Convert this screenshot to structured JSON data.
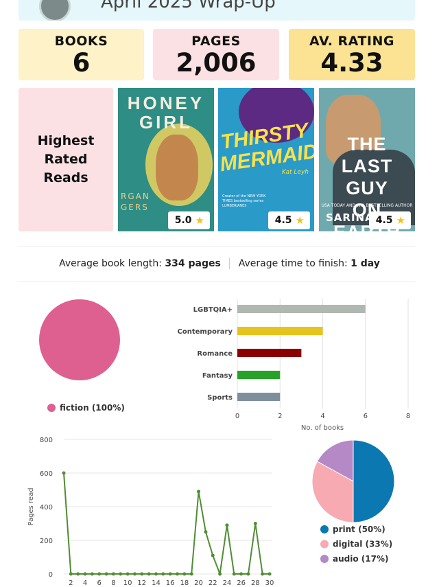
{
  "header": {
    "title": "April 2025 Wrap-Up"
  },
  "stats": [
    {
      "label": "BOOKS",
      "value": "6"
    },
    {
      "label": "PAGES",
      "value": "2,006"
    },
    {
      "label": "AV. RATING",
      "value": "4.33"
    }
  ],
  "highest_rated": {
    "title_lines": [
      "Highest",
      "Rated",
      "Reads"
    ],
    "books": [
      {
        "cover_title_lines": [
          "HONEY",
          "GIRL"
        ],
        "author_partial": [
          "RGAN",
          "GERS"
        ],
        "rating": "5.0"
      },
      {
        "cover_title_lines": [
          "THIRSTY",
          "MERMAIDS"
        ],
        "author_partial": "Kat Leyh",
        "blurb": "Creator of the NEW YORK TIMES bestselling series LUMBERJANES",
        "rating": "4.5"
      },
      {
        "cover_title_lines": [
          "THE",
          "LAST GUY",
          "ON EARTH"
        ],
        "tagline": "USA TODAY AND WSJ BESTSELLING AUTHOR",
        "author_partial": "SARINA",
        "rating": "4.5"
      }
    ]
  },
  "summary": {
    "avg_length_label": "Average book length:",
    "avg_length_value": "334 pages",
    "avg_time_label": "Average time to finish:",
    "avg_time_value": "1 day"
  },
  "colors": {
    "fiction": "#dd6090",
    "genre_bars": [
      "#b0b8b1",
      "#e7c41c",
      "#8b0000",
      "#27a227",
      "#7e8f9c"
    ],
    "line": "#4f8d32",
    "format": [
      "#0b78b2",
      "#f7aab1",
      "#b589c6"
    ]
  },
  "chart_data": [
    {
      "type": "pie",
      "labels": [
        "fiction (100%)"
      ],
      "values": [
        100
      ],
      "legend": "bottom"
    },
    {
      "type": "bar",
      "orientation": "horizontal",
      "categories": [
        "LGBTQIA+",
        "Contemporary",
        "Romance",
        "Fantasy",
        "Sports"
      ],
      "values": [
        6,
        4,
        3,
        2,
        2
      ],
      "xlabel": "No. of books",
      "xlim": [
        0,
        8
      ],
      "xticks": [
        "0",
        "2",
        "4",
        "6",
        "8"
      ],
      "grid": true
    },
    {
      "type": "line",
      "x": [
        1,
        2,
        3,
        4,
        5,
        6,
        7,
        8,
        9,
        10,
        11,
        12,
        13,
        14,
        15,
        16,
        17,
        18,
        19,
        20,
        21,
        22,
        23,
        24,
        25,
        26,
        27,
        28,
        29,
        30
      ],
      "values": [
        600,
        0,
        0,
        0,
        0,
        0,
        0,
        0,
        0,
        0,
        0,
        0,
        0,
        0,
        0,
        0,
        0,
        0,
        0,
        490,
        250,
        110,
        0,
        290,
        0,
        0,
        0,
        300,
        0,
        0
      ],
      "ylabel": "Pages read",
      "ylim": [
        0,
        800
      ],
      "yticks": [
        "0",
        "200",
        "400",
        "600",
        "800"
      ],
      "xticks": [
        "2",
        "4",
        "6",
        "8",
        "10",
        "12",
        "14",
        "16",
        "18",
        "20",
        "22",
        "24",
        "26",
        "28",
        "30"
      ],
      "grid": true
    },
    {
      "type": "pie",
      "labels": [
        "print (50%)",
        "digital (33%)",
        "audio (17%)"
      ],
      "values": [
        50,
        33,
        17
      ],
      "legend": "bottom"
    }
  ]
}
